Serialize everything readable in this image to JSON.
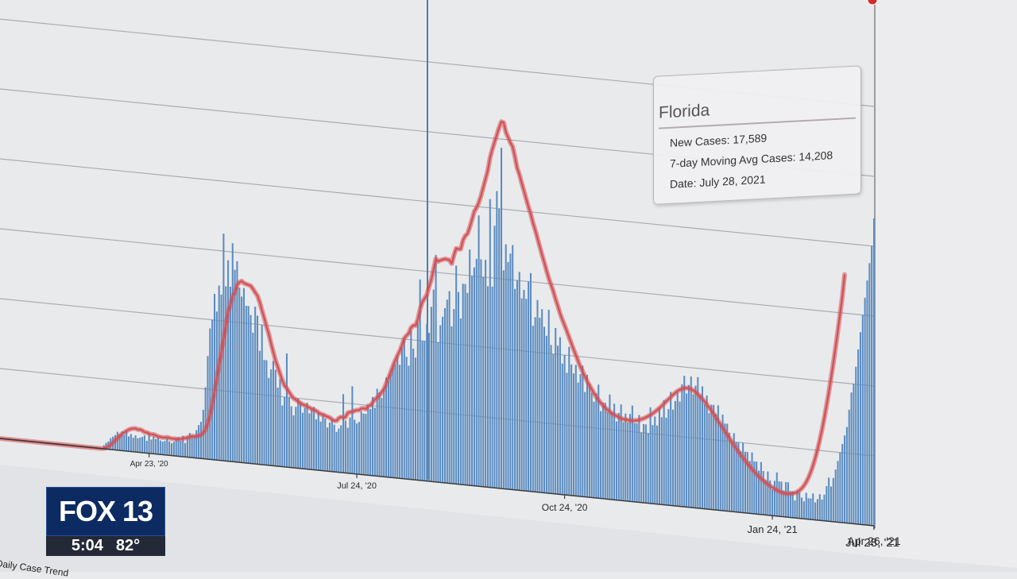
{
  "chart_data": {
    "type": "bar",
    "title": "",
    "xlabel": "",
    "ylabel": "",
    "x_tick_labels": [
      "Apr 23, '20",
      "Jul 24, '20",
      "Oct 24, '20",
      "Jan 24, '21",
      "Apr 26, '21",
      "Jul 28, '21"
    ],
    "series": [
      {
        "name": "New Cases",
        "values": [
          0,
          0,
          0,
          0,
          0,
          0,
          0,
          0,
          0,
          0,
          0,
          0,
          0,
          0,
          0,
          0,
          0,
          0,
          0,
          0,
          0,
          0,
          0,
          0,
          0,
          0,
          0,
          0,
          0,
          0,
          0,
          0,
          0,
          0,
          0,
          0,
          0,
          0,
          0,
          0,
          0,
          0,
          0,
          0,
          0,
          0,
          200,
          350,
          450,
          650,
          750,
          850,
          1050,
          950,
          1100,
          900,
          1150,
          850,
          1000,
          800,
          950,
          800,
          850,
          900,
          1000,
          700,
          1200,
          800,
          1000,
          850,
          950,
          800,
          750,
          800,
          950,
          800,
          700,
          800,
          1000,
          1100,
          900,
          1200,
          800,
          1100,
          1400,
          1200,
          1200,
          1600,
          1900,
          2100,
          2800,
          4100,
          5900,
          7500,
          8000,
          9500,
          8500,
          10000,
          9500,
          13000,
          10000,
          11500,
          10000,
          12500,
          11000,
          11500,
          10000,
          9500,
          10000,
          9000,
          9000,
          8500,
          7500,
          9000,
          8500,
          6500,
          8000,
          6000,
          6000,
          5000,
          5500,
          6000,
          5500,
          4500,
          5000,
          3500,
          4000,
          6500,
          4000,
          3500,
          3000,
          3500,
          4000,
          3800,
          3200,
          3500,
          3800,
          3200,
          3500,
          3600,
          2900,
          3300,
          2800,
          3200,
          3000,
          2500,
          2800,
          3000,
          2700,
          2300,
          2500,
          2700,
          4500,
          3000,
          2600,
          3200,
          5000,
          3100,
          2900,
          3000,
          3600,
          3500,
          3500,
          4000,
          3800,
          4500,
          3900,
          5000,
          4800,
          4500,
          5000,
          5700,
          5500,
          6000,
          6500,
          6500,
          7000,
          6500,
          7500,
          8000,
          7000,
          6500,
          8500,
          7500,
          7000,
          9000,
          11500,
          8000,
          8000,
          9000,
          8500,
          10000,
          11000,
          13000,
          8000,
          9000,
          9500,
          10000,
          10500,
          11000,
          9000,
          10000,
          12500,
          11000,
          9500,
          11500,
          11500,
          11000,
          13500,
          12000,
          12500,
          13000,
          15500,
          13000,
          12000,
          13000,
          11500,
          16500,
          11500,
          15000,
          17000,
          16000,
          19500,
          12500,
          14000,
          13000,
          13500,
          14000,
          11500,
          12000,
          12500,
          11000,
          11500,
          11000,
          12000,
          12500,
          9500,
          10000,
          11000,
          10000,
          10500,
          9500,
          9000,
          10500,
          8500,
          8000,
          9500,
          8500,
          9000,
          7500,
          8000,
          7000,
          8500,
          7500,
          7000,
          7500,
          6500,
          7000,
          7500,
          6000,
          7000,
          6500,
          6000,
          5500,
          6000,
          6500,
          5000,
          5500,
          5500,
          5000,
          6000,
          5000,
          5500,
          4500,
          5000,
          5500,
          4500,
          5000,
          4500,
          5000,
          5500,
          4500,
          4500,
          5000,
          4000,
          4500,
          4500,
          4000,
          5500,
          4500,
          5000,
          4500,
          5500,
          5000,
          6000,
          5000,
          5500,
          6500,
          5500,
          6000,
          6500,
          6000,
          7000,
          7500,
          6500,
          7000,
          7500,
          6500,
          7000,
          7500,
          6500,
          7000,
          6000,
          6500,
          5500,
          6000,
          6000,
          5500,
          6000,
          5000,
          5500,
          5000,
          5000,
          4500,
          4000,
          4500,
          4000,
          4000,
          3500,
          4000,
          3500,
          3500,
          3000,
          3500,
          3000,
          3000,
          2500,
          3000,
          2500,
          2000,
          2500,
          2000,
          1500,
          2000,
          2500,
          2000,
          2000,
          1500,
          2000,
          2000,
          1500,
          1500,
          1000,
          1500,
          1500,
          1200,
          1000,
          1500,
          1200,
          1200,
          1500,
          1000,
          1200,
          1500,
          1200,
          1500,
          2000,
          2500,
          2000,
          2500,
          3000,
          3500,
          4000,
          4500,
          5000,
          5500,
          6500,
          7500,
          8000,
          9000,
          10000,
          11000,
          12000,
          13000,
          14000,
          15000,
          16000,
          17589
        ]
      },
      {
        "name": "7-day Moving Avg Cases",
        "values": [
          0,
          0,
          0,
          0,
          0,
          0,
          0,
          0,
          0,
          0,
          0,
          0,
          0,
          0,
          0,
          0,
          0,
          0,
          0,
          0,
          0,
          0,
          0,
          0,
          0,
          0,
          0,
          0,
          0,
          0,
          0,
          0,
          0,
          0,
          0,
          0,
          0,
          0,
          0,
          0,
          0,
          0,
          0,
          0,
          0,
          0,
          21,
          68,
          152,
          270,
          398,
          531,
          689,
          816,
          946,
          1051,
          1151,
          1235,
          1300,
          1328,
          1346,
          1296,
          1311,
          1267,
          1185,
          1180,
          1124,
          1097,
          1108,
          1065,
          1016,
          997,
          989,
          996,
          1016,
          999,
          971,
          977,
          968,
          981,
          997,
          1038,
          1077,
          1124,
          1174,
          1228,
          1232,
          1242,
          1293,
          1356,
          1483,
          1690,
          2037,
          2526,
          3156,
          3892,
          4671,
          5471,
          6188,
          6968,
          7719,
          8554,
          8954,
          9480,
          9714,
          10126,
          10300,
          10386,
          10283,
          10241,
          10208,
          10169,
          10008,
          9812,
          9637,
          9287,
          8829,
          8407,
          7936,
          7529,
          6991,
          6512,
          6050,
          5684,
          5308,
          4947,
          4645,
          4504,
          4313,
          4125,
          3975,
          3905,
          3828,
          3745,
          3678,
          3637,
          3589,
          3534,
          3475,
          3432,
          3387,
          3299,
          3235,
          3213,
          3156,
          3119,
          3080,
          2988,
          2925,
          2936,
          3100,
          3178,
          3152,
          3200,
          3448,
          3510,
          3535,
          3606,
          3657,
          3671,
          3775,
          3806,
          3775,
          3961,
          4015,
          4171,
          4386,
          4500,
          4628,
          4829,
          5024,
          5342,
          5671,
          6033,
          6386,
          6725,
          7026,
          7290,
          7645,
          8036,
          8214,
          8357,
          8686,
          8830,
          8836,
          9200,
          9795,
          10207,
          10443,
          10659,
          11143,
          11557,
          12171,
          12771,
          12636,
          12709,
          12764,
          12817,
          12800,
          12779,
          12586,
          13086,
          13486,
          13457,
          13471,
          13986,
          14257,
          14386,
          14771,
          15229,
          15699,
          15929,
          16229,
          16643,
          17143,
          17629,
          18129,
          18871,
          19357,
          19800,
          20214,
          20643,
          21000,
          20957,
          20429,
          20136,
          19843,
          19629,
          19071,
          18429,
          18071,
          17600,
          17171,
          16714,
          16271,
          15886,
          15386,
          14986,
          14529,
          14071,
          13614,
          13186,
          12729,
          12300,
          11943,
          11586,
          11157,
          10771,
          10357,
          10014,
          9700,
          9386,
          9043,
          8714,
          8371,
          8057,
          7729,
          7429,
          7157,
          6900,
          6629,
          6414,
          6200,
          5986,
          5786,
          5629,
          5471,
          5343,
          5214,
          5114,
          5029,
          4943,
          4871,
          4814,
          4757,
          4700,
          4671,
          4657,
          4643,
          4643,
          4629,
          4657,
          4671,
          4714,
          4771,
          4829,
          4900,
          4986,
          5057,
          5157,
          5271,
          5386,
          5514,
          5643,
          5786,
          5929,
          6071,
          6200,
          6343,
          6471,
          6586,
          6671,
          6743,
          6786,
          6814,
          6814,
          6771,
          6714,
          6629,
          6529,
          6414,
          6286,
          6143,
          5986,
          5829,
          5657,
          5486,
          5300,
          5114,
          4929,
          4743,
          4557,
          4371,
          4186,
          4000,
          3814,
          3643,
          3471,
          3300,
          3143,
          2986,
          2829,
          2686,
          2543,
          2414,
          2286,
          2171,
          2057,
          1957,
          1857,
          1771,
          1686,
          1614,
          1543,
          1486,
          1429,
          1386,
          1357,
          1343,
          1343,
          1357,
          1386,
          1429,
          1500,
          1600,
          1729,
          1900,
          2114,
          2386,
          2714,
          3100,
          3543,
          4043,
          4600,
          5214,
          5886,
          6614,
          7386,
          8214,
          9086,
          10000,
          10957,
          11943,
          12957,
          14208
        ]
      }
    ],
    "highlight": {
      "state": "Florida",
      "new_cases_text": "New Cases: 17,589",
      "avg_text": "7-day Moving Avg Cases: 14,208",
      "date_text": "Date: July 28, 2021"
    },
    "colors": {
      "bars": "#5b8cc0",
      "line": "#d25055",
      "grid": "#a9acb1",
      "marker": "#d42a2a"
    },
    "grid": true
  },
  "logo": {
    "brand": "FOX 13",
    "time": "5:04",
    "temp": "82°"
  },
  "footer": {
    "edge_text": "Daily Case Trend"
  }
}
